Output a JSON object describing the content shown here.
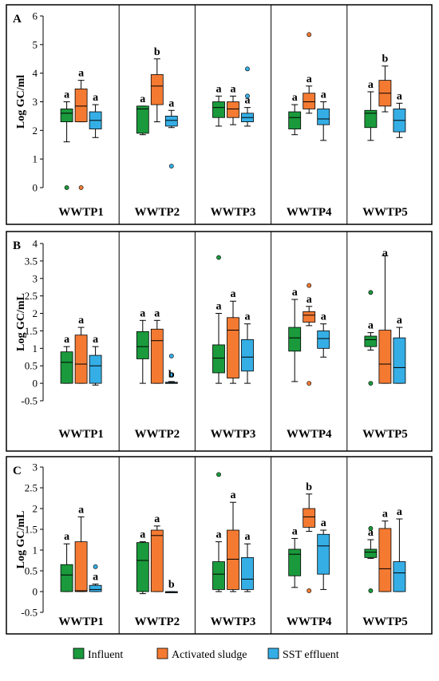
{
  "colors": {
    "influent": "#1a9a3c",
    "sludge": "#f47a32",
    "sst": "#35aee6",
    "frame": "#000000"
  },
  "legend": [
    {
      "key": "influent",
      "label": "Influent"
    },
    {
      "key": "sludge",
      "label": "Activated sludge"
    },
    {
      "key": "sst",
      "label": "SST effluent"
    }
  ],
  "chart_data": [
    {
      "type": "box",
      "panel_label": "A",
      "ylabel": "Log GC/ml",
      "ylim": [
        0,
        6
      ],
      "yticks": [
        "0",
        "1",
        "2",
        "3",
        "4",
        "5",
        "6"
      ],
      "categories": [
        "WWTP1",
        "WWTP2",
        "WWTP3",
        "WWTP4",
        "WWTP5"
      ],
      "series": [
        "Influent",
        "Activated sludge",
        "SST effluent"
      ],
      "groups": [
        [
          {
            "min": 1.6,
            "q1": 2.3,
            "med": 2.6,
            "q3": 2.75,
            "max": 3.0,
            "out": [
              0.0
            ],
            "letter": "a"
          },
          {
            "min": 2.3,
            "q1": 2.3,
            "med": 2.85,
            "q3": 3.45,
            "max": 3.75,
            "out": [
              0.0
            ],
            "letter": "a"
          },
          {
            "min": 1.75,
            "q1": 2.05,
            "med": 2.35,
            "q3": 2.65,
            "max": 2.9,
            "out": [],
            "letter": "a"
          }
        ],
        [
          {
            "min": 1.85,
            "q1": 1.9,
            "med": 2.75,
            "q3": 2.85,
            "max": 2.85,
            "out": [],
            "letter": "a"
          },
          {
            "min": 2.3,
            "q1": 2.9,
            "med": 3.55,
            "q3": 3.95,
            "max": 4.5,
            "out": [],
            "letter": "b"
          },
          {
            "min": 2.1,
            "q1": 2.15,
            "med": 2.35,
            "q3": 2.5,
            "max": 2.7,
            "out": [
              0.75
            ],
            "letter": "a"
          }
        ],
        [
          {
            "min": 2.15,
            "q1": 2.45,
            "med": 2.8,
            "q3": 3.0,
            "max": 3.2,
            "out": [],
            "letter": "a"
          },
          {
            "min": 2.2,
            "q1": 2.45,
            "med": 2.75,
            "q3": 3.0,
            "max": 3.2,
            "out": [],
            "letter": "a"
          },
          {
            "min": 2.15,
            "q1": 2.3,
            "med": 2.45,
            "q3": 2.6,
            "max": 2.8,
            "out": [
              4.15,
              3.2
            ],
            "letter": "a"
          }
        ],
        [
          {
            "min": 1.85,
            "q1": 2.05,
            "med": 2.45,
            "q3": 2.65,
            "max": 2.9,
            "out": [],
            "letter": "a"
          },
          {
            "min": 2.6,
            "q1": 2.75,
            "med": 3.0,
            "q3": 3.3,
            "max": 3.55,
            "out": [
              5.35
            ],
            "letter": "a"
          },
          {
            "min": 1.65,
            "q1": 2.2,
            "med": 2.4,
            "q3": 2.75,
            "max": 3.0,
            "out": [],
            "letter": "a"
          }
        ],
        [
          {
            "min": 1.65,
            "q1": 2.1,
            "med": 2.6,
            "q3": 2.7,
            "max": 3.35,
            "out": [],
            "letter": "a"
          },
          {
            "min": 2.65,
            "q1": 2.85,
            "med": 3.3,
            "q3": 3.75,
            "max": 4.25,
            "out": [],
            "letter": "b"
          },
          {
            "min": 1.75,
            "q1": 1.95,
            "med": 2.35,
            "q3": 2.75,
            "max": 2.95,
            "out": [],
            "letter": "a"
          }
        ]
      ]
    },
    {
      "type": "box",
      "panel_label": "B",
      "ylabel": "Log GC/mL",
      "ylim": [
        -0.5,
        4
      ],
      "yticks": [
        "-0.5",
        "0",
        "0.5",
        "1",
        "1.5",
        "2",
        "2.5",
        "3",
        "3.5",
        "4"
      ],
      "categories": [
        "WWTP1",
        "WWTP2",
        "WWTP3",
        "WWTP4",
        "WWTP5"
      ],
      "series": [
        "Influent",
        "Activated sludge",
        "SST effluent"
      ],
      "groups": [
        [
          {
            "min": 0.0,
            "q1": 0.0,
            "med": 0.6,
            "q3": 0.9,
            "max": 1.05,
            "out": [],
            "letter": "a"
          },
          {
            "min": 0.0,
            "q1": 0.0,
            "med": 0.55,
            "q3": 1.38,
            "max": 1.6,
            "out": [],
            "letter": "a"
          },
          {
            "min": -0.05,
            "q1": 0.0,
            "med": 0.5,
            "q3": 0.8,
            "max": 1.05,
            "out": [],
            "letter": "a"
          }
        ],
        [
          {
            "min": 0.0,
            "q1": 0.7,
            "med": 1.05,
            "q3": 1.48,
            "max": 1.8,
            "out": [],
            "letter": "a"
          },
          {
            "min": 0.0,
            "q1": 0.0,
            "med": 1.22,
            "q3": 1.55,
            "max": 1.8,
            "out": [],
            "letter": "a"
          },
          {
            "min": 0.02,
            "q1": 0.02,
            "med": 0.02,
            "q3": 0.03,
            "max": 0.05,
            "out": [
              0.78,
              0.25
            ],
            "letter": "b"
          }
        ],
        [
          {
            "min": 0.0,
            "q1": 0.3,
            "med": 0.72,
            "q3": 1.1,
            "max": 2.0,
            "out": [
              3.6
            ],
            "letter": "a"
          },
          {
            "min": 0.0,
            "q1": 0.15,
            "med": 1.52,
            "q3": 1.88,
            "max": 2.35,
            "out": [],
            "letter": "a"
          },
          {
            "min": 0.0,
            "q1": 0.35,
            "med": 0.75,
            "q3": 1.25,
            "max": 1.7,
            "out": [],
            "letter": "a"
          }
        ],
        [
          {
            "min": 0.05,
            "q1": 0.92,
            "med": 1.3,
            "q3": 1.6,
            "max": 2.4,
            "out": [],
            "letter": "a"
          },
          {
            "min": 1.65,
            "q1": 1.75,
            "med": 1.95,
            "q3": 2.05,
            "max": 2.2,
            "out": [
              2.8,
              0.0
            ],
            "letter": "a"
          },
          {
            "min": 0.75,
            "q1": 1.0,
            "med": 1.28,
            "q3": 1.5,
            "max": 1.7,
            "out": [],
            "letter": "a"
          }
        ],
        [
          {
            "min": 0.95,
            "q1": 1.05,
            "med": 1.25,
            "q3": 1.35,
            "max": 1.45,
            "out": [
              2.6,
              0.0
            ],
            "letter": "a"
          },
          {
            "min": 0.0,
            "q1": 0.0,
            "med": 0.55,
            "q3": 1.52,
            "max": 3.65,
            "out": [],
            "letter": "a"
          },
          {
            "min": 0.0,
            "q1": 0.0,
            "med": 0.45,
            "q3": 1.3,
            "max": 1.6,
            "out": [],
            "letter": "a"
          }
        ]
      ]
    },
    {
      "type": "box",
      "panel_label": "C",
      "ylabel": "Log GC/mL",
      "ylim": [
        -0.5,
        3
      ],
      "yticks": [
        "-0.5",
        "0",
        "0.5",
        "1",
        "1.5",
        "2",
        "2.5",
        "3"
      ],
      "categories": [
        "WWTP1",
        "WWTP2",
        "WWTP3",
        "WWTP4",
        "WWTP5"
      ],
      "series": [
        "Influent",
        "Activated sludge",
        "SST effluent"
      ],
      "groups": [
        [
          {
            "min": 0.0,
            "q1": 0.0,
            "med": 0.4,
            "q3": 0.65,
            "max": 1.15,
            "out": [],
            "letter": "a"
          },
          {
            "min": 0.0,
            "q1": 0.0,
            "med": 0.02,
            "q3": 1.2,
            "max": 1.8,
            "out": [],
            "letter": "a"
          },
          {
            "min": 0.0,
            "q1": 0.0,
            "med": 0.05,
            "q3": 0.15,
            "max": 0.18,
            "out": [
              0.6
            ],
            "letter": "a"
          }
        ],
        [
          {
            "min": -0.05,
            "q1": 0.0,
            "med": 0.75,
            "q3": 1.18,
            "max": 1.2,
            "out": [],
            "letter": "a"
          },
          {
            "min": 0.0,
            "q1": 0.0,
            "med": 1.35,
            "q3": 1.48,
            "max": 1.58,
            "out": [],
            "letter": "a"
          },
          {
            "min": -0.02,
            "q1": -0.02,
            "med": -0.02,
            "q3": 0.0,
            "max": 0.0,
            "out": [],
            "letter": "b"
          }
        ],
        [
          {
            "min": 0.0,
            "q1": 0.05,
            "med": 0.42,
            "q3": 0.72,
            "max": 1.2,
            "out": [
              2.82
            ],
            "letter": "a"
          },
          {
            "min": 0.0,
            "q1": 0.05,
            "med": 0.78,
            "q3": 1.48,
            "max": 2.15,
            "out": [],
            "letter": "a"
          },
          {
            "min": 0.0,
            "q1": 0.05,
            "med": 0.3,
            "q3": 0.82,
            "max": 1.15,
            "out": [],
            "letter": "a"
          }
        ],
        [
          {
            "min": 0.1,
            "q1": 0.38,
            "med": 0.9,
            "q3": 1.02,
            "max": 1.28,
            "out": [],
            "letter": "a"
          },
          {
            "min": 1.45,
            "q1": 1.55,
            "med": 1.8,
            "q3": 2.0,
            "max": 2.35,
            "out": [
              0.02
            ],
            "letter": "b"
          },
          {
            "min": 0.05,
            "q1": 0.42,
            "med": 1.1,
            "q3": 1.38,
            "max": 1.48,
            "out": [],
            "letter": "a"
          }
        ],
        [
          {
            "min": 0.8,
            "q1": 0.82,
            "med": 0.95,
            "q3": 1.02,
            "max": 1.25,
            "out": [
              1.52,
              0.02
            ],
            "letter": "a"
          },
          {
            "min": 0.0,
            "q1": 0.0,
            "med": 0.55,
            "q3": 1.52,
            "max": 1.7,
            "out": [],
            "letter": "a"
          },
          {
            "min": 0.0,
            "q1": 0.0,
            "med": 0.45,
            "q3": 0.72,
            "max": 1.75,
            "out": [],
            "letter": "a"
          }
        ]
      ]
    }
  ]
}
